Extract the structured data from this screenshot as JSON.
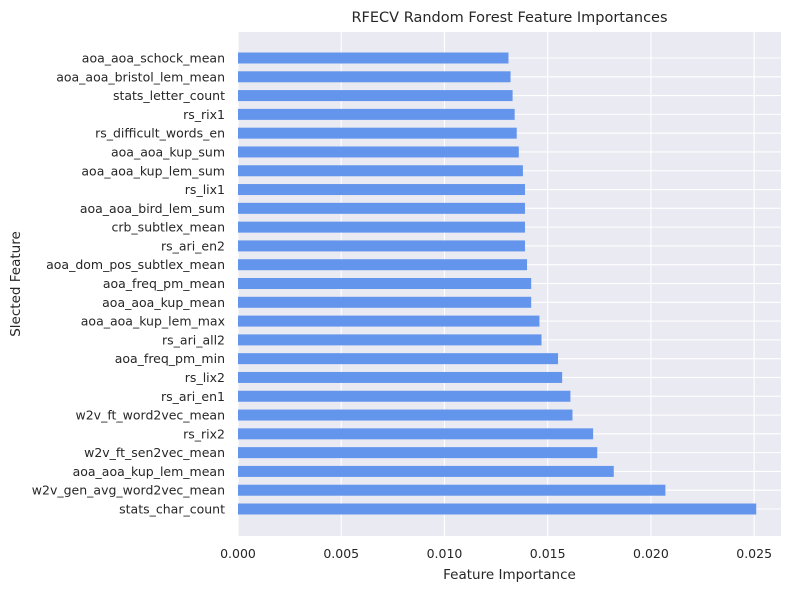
{
  "chart_data": {
    "type": "bar",
    "orientation": "horizontal",
    "title": "RFECV Random Forest Feature Importances",
    "xlabel": "Feature Importance",
    "ylabel": "Slected Feature",
    "xlim": [
      0,
      0.0263
    ],
    "xticks": [
      "0.000",
      "0.005",
      "0.010",
      "0.015",
      "0.020",
      "0.025"
    ],
    "xtick_values": [
      0,
      0.005,
      0.01,
      0.015,
      0.02,
      0.025
    ],
    "grid": true,
    "bar_color": "#6495ED",
    "background_color": "#EAEAF2",
    "categories": [
      "stats_char_count",
      "w2v_gen_avg_word2vec_mean",
      "aoa_aoa_kup_lem_mean",
      "w2v_ft_sen2vec_mean",
      "rs_rix2",
      "w2v_ft_word2vec_mean",
      "rs_ari_en1",
      "rs_lix2",
      "aoa_freq_pm_min",
      "rs_ari_all2",
      "aoa_aoa_kup_lem_max",
      "aoa_aoa_kup_mean",
      "aoa_freq_pm_mean",
      "aoa_dom_pos_subtlex_mean",
      "rs_ari_en2",
      "crb_subtlex_mean",
      "aoa_aoa_bird_lem_sum",
      "rs_lix1",
      "aoa_aoa_kup_lem_sum",
      "aoa_aoa_kup_sum",
      "rs_difficult_words_en",
      "rs_rix1",
      "stats_letter_count",
      "aoa_aoa_bristol_lem_mean",
      "aoa_aoa_schock_mean"
    ],
    "values": [
      0.0251,
      0.0207,
      0.0182,
      0.0174,
      0.0172,
      0.0162,
      0.0161,
      0.0157,
      0.0155,
      0.0147,
      0.0146,
      0.0142,
      0.0142,
      0.014,
      0.0139,
      0.0139,
      0.0139,
      0.0139,
      0.0138,
      0.0136,
      0.0135,
      0.0134,
      0.0133,
      0.0132,
      0.0131
    ]
  }
}
